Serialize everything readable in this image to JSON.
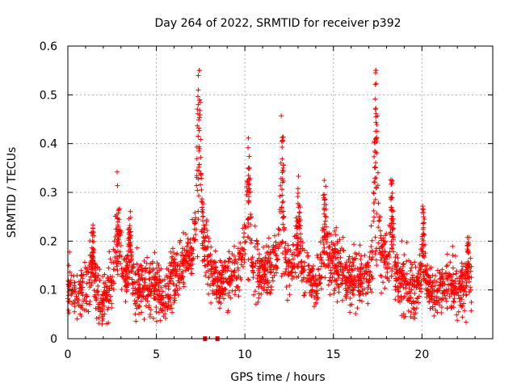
{
  "chart_data": {
    "type": "scatter",
    "title": "Day 264 of 2022, SRMTID for receiver p392",
    "xlabel": "GPS time / hours",
    "ylabel": "SRMTID / TECUs",
    "xlim": [
      0,
      24
    ],
    "ylim": [
      0,
      0.6
    ],
    "xticks": [
      0,
      5,
      10,
      15,
      20
    ],
    "xtick_labels": [
      "0",
      "5",
      "10",
      "15",
      "20"
    ],
    "yticks": [
      0,
      0.1,
      0.2,
      0.3,
      0.4,
      0.5,
      0.6
    ],
    "ytick_labels": [
      "0",
      "0.1",
      "0.2",
      "0.3",
      "0.4",
      "0.5",
      "0.6"
    ],
    "grid": true,
    "marker": "+",
    "color": "#ff0000",
    "point_count_estimate": 2400,
    "generation_seed": 264,
    "baseline_anchors": {
      "x": [
        0,
        0.5,
        1.0,
        1.5,
        2.0,
        2.5,
        3.0,
        3.5,
        4.0,
        4.5,
        5.0,
        5.5,
        6.0,
        6.5,
        7.0,
        7.5,
        8.0,
        8.5,
        9.0,
        9.5,
        10.0,
        10.5,
        11.0,
        11.5,
        12.0,
        12.5,
        13.0,
        13.5,
        14.0,
        14.5,
        15.0,
        15.5,
        16.0,
        16.5,
        17.0,
        17.5,
        18.0,
        18.5,
        19.0,
        19.5,
        20.0,
        20.5,
        21.0,
        21.5,
        22.0,
        22.8
      ],
      "y": [
        0.1,
        0.09,
        0.11,
        0.09,
        0.08,
        0.12,
        0.15,
        0.11,
        0.1,
        0.11,
        0.1,
        0.09,
        0.13,
        0.15,
        0.18,
        0.24,
        0.15,
        0.11,
        0.12,
        0.14,
        0.18,
        0.13,
        0.14,
        0.15,
        0.19,
        0.14,
        0.15,
        0.13,
        0.11,
        0.14,
        0.16,
        0.14,
        0.12,
        0.13,
        0.12,
        0.2,
        0.16,
        0.13,
        0.12,
        0.1,
        0.12,
        0.09,
        0.1,
        0.11,
        0.11,
        0.1
      ]
    },
    "spikes": [
      {
        "x": 1.4,
        "peak": 0.24,
        "width": 0.15
      },
      {
        "x": 2.8,
        "peak": 0.27,
        "width": 0.15
      },
      {
        "x": 3.5,
        "peak": 0.27,
        "width": 0.12
      },
      {
        "x": 7.4,
        "peak": 0.54,
        "width": 0.12
      },
      {
        "x": 10.2,
        "peak": 0.37,
        "width": 0.15
      },
      {
        "x": 12.1,
        "peak": 0.42,
        "width": 0.12
      },
      {
        "x": 13.0,
        "peak": 0.27,
        "width": 0.15
      },
      {
        "x": 14.5,
        "peak": 0.3,
        "width": 0.15
      },
      {
        "x": 17.4,
        "peak": 0.54,
        "width": 0.12
      },
      {
        "x": 18.3,
        "peak": 0.32,
        "width": 0.12
      },
      {
        "x": 20.1,
        "peak": 0.28,
        "width": 0.12
      },
      {
        "x": 22.6,
        "peak": 0.21,
        "width": 0.1
      }
    ],
    "data_gap": [
      22.8,
      24
    ],
    "zero_markers": [
      {
        "x": 7.75,
        "y": 0
      },
      {
        "x": 8.45,
        "y": 0
      }
    ]
  }
}
